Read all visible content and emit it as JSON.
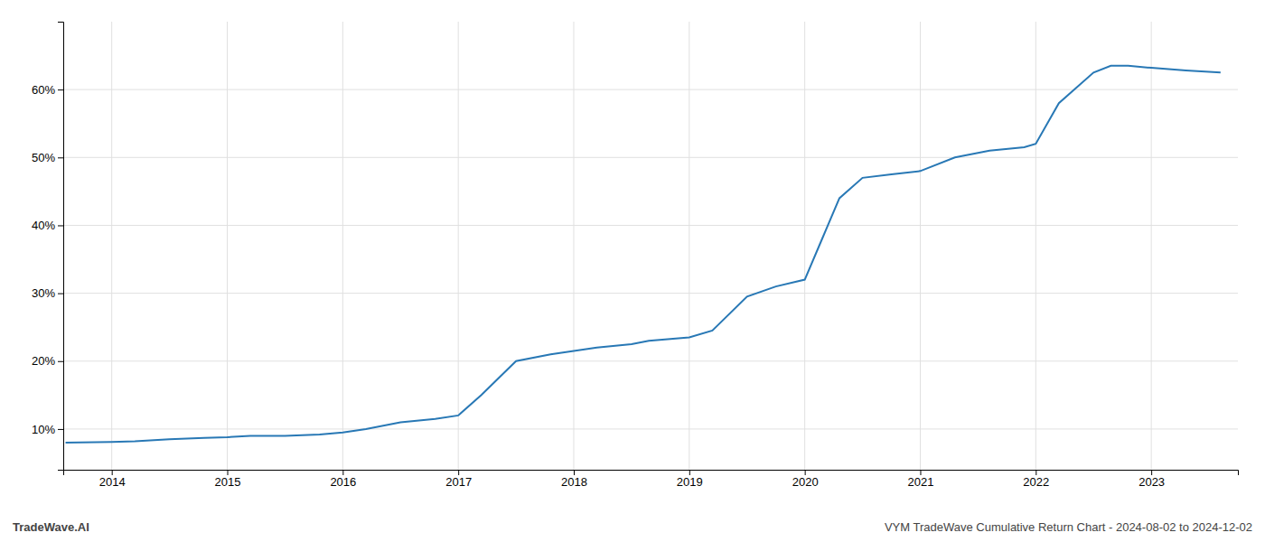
{
  "chart_data": {
    "type": "line",
    "x": [
      2013.6,
      2014.0,
      2014.2,
      2014.5,
      2014.8,
      2015.0,
      2015.2,
      2015.5,
      2015.8,
      2016.0,
      2016.2,
      2016.5,
      2016.8,
      2017.0,
      2017.2,
      2017.5,
      2017.8,
      2018.0,
      2018.2,
      2018.5,
      2018.65,
      2019.0,
      2019.2,
      2019.5,
      2019.75,
      2020.0,
      2020.15,
      2020.3,
      2020.5,
      2020.75,
      2021.0,
      2021.3,
      2021.6,
      2021.9,
      2022.0,
      2022.2,
      2022.5,
      2022.65,
      2022.8,
      2023.0,
      2023.3,
      2023.6
    ],
    "values": [
      8.0,
      8.1,
      8.2,
      8.5,
      8.7,
      8.8,
      9.0,
      9.0,
      9.2,
      9.5,
      10.0,
      11.0,
      11.5,
      12.0,
      15.0,
      20.0,
      21.0,
      21.5,
      22.0,
      22.5,
      23.0,
      23.5,
      24.5,
      29.5,
      31.0,
      32.0,
      38.0,
      44.0,
      47.0,
      47.5,
      48.0,
      50.0,
      51.0,
      51.5,
      52.0,
      58.0,
      62.5,
      63.5,
      63.5,
      63.2,
      62.8,
      62.5
    ],
    "color": "#2878b5",
    "xlim": [
      2013.58,
      2023.75
    ],
    "ylim": [
      4,
      70
    ],
    "xticks": [
      2014,
      2015,
      2016,
      2017,
      2018,
      2019,
      2020,
      2021,
      2022,
      2023
    ],
    "yticks": [
      {
        "value": 10,
        "label": "10%"
      },
      {
        "value": 20,
        "label": "20%"
      },
      {
        "value": 30,
        "label": "30%"
      },
      {
        "value": 40,
        "label": "40%"
      },
      {
        "value": 50,
        "label": "50%"
      },
      {
        "value": 60,
        "label": "60%"
      }
    ],
    "grid": true,
    "annotations": [
      "TradeWave.AI",
      "VYM TradeWave Cumulative Return Chart - 2024-08-02 to 2024-12-02"
    ]
  }
}
